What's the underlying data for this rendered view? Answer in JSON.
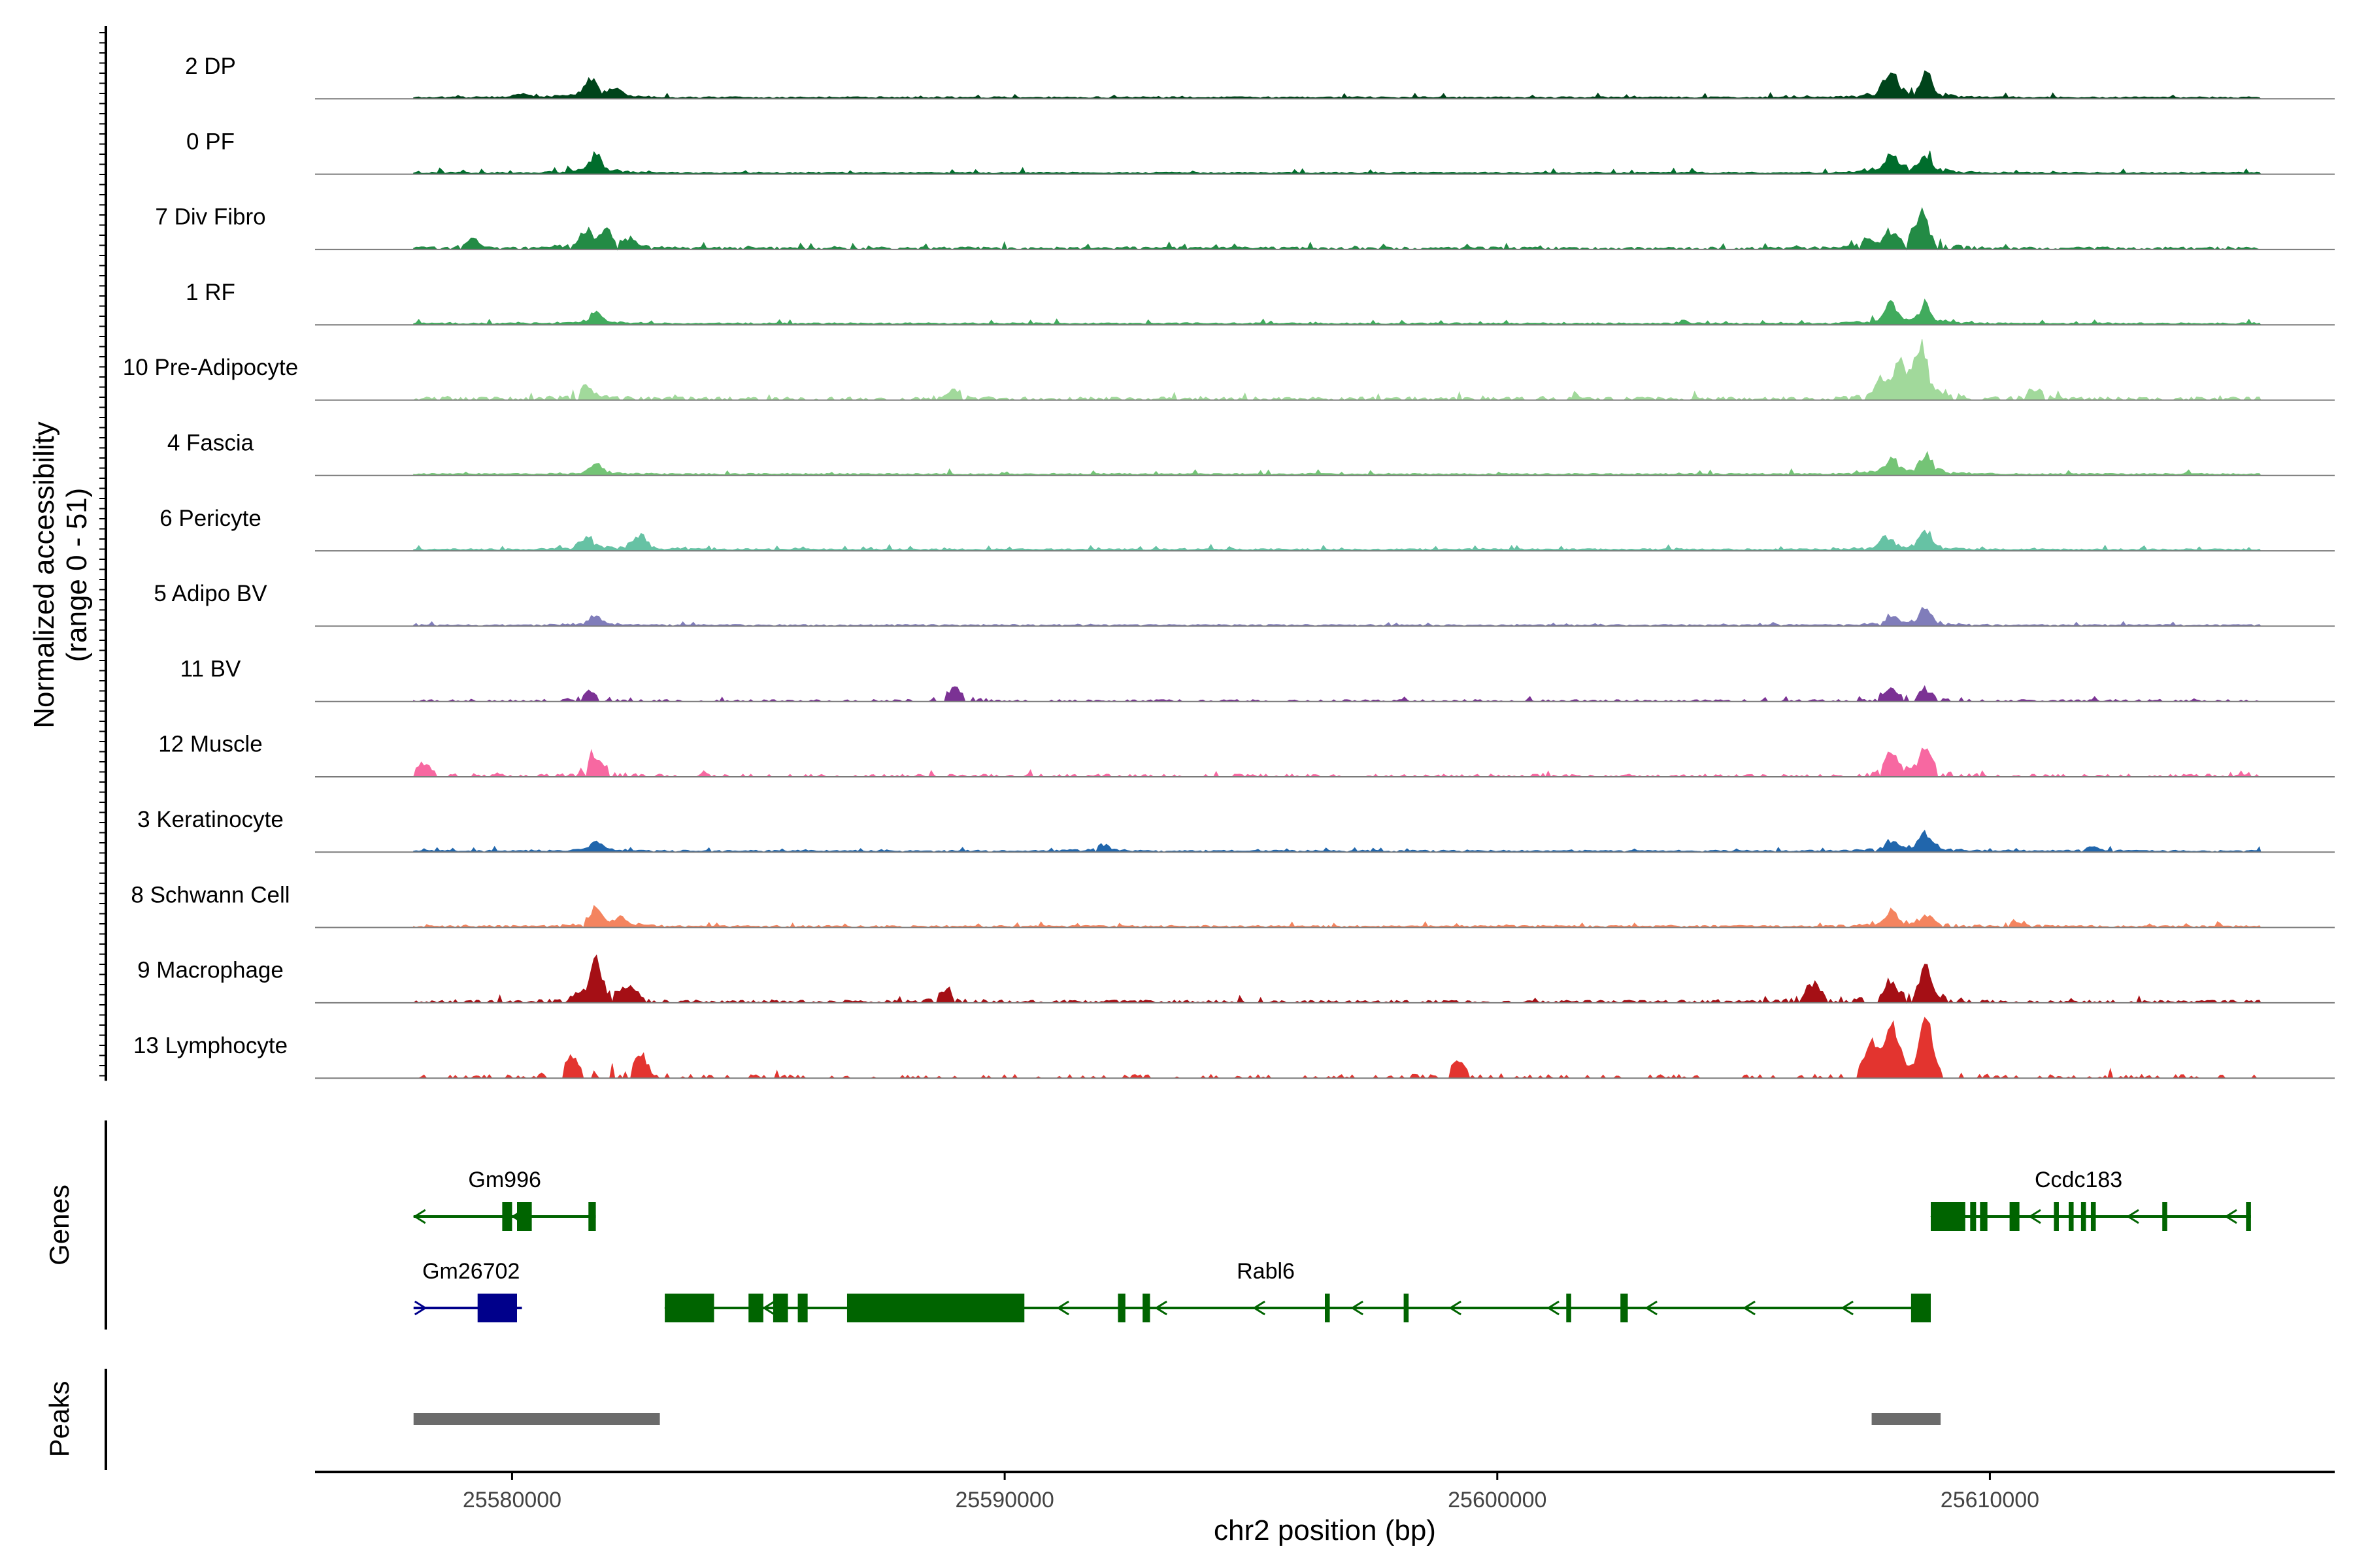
{
  "chart_data": {
    "type": "area",
    "y_axis_title_line1": "Normalized accessibility",
    "y_axis_title_line2": "(range 0 - 51)",
    "ylim": [
      0,
      51
    ],
    "x_axis_title": "chr2 position (bp)",
    "xlim": [
      25576000,
      25617000
    ],
    "x_ticks": [
      25580000,
      25590000,
      25600000,
      25610000
    ],
    "x_tick_labels": [
      "25580000",
      "25590000",
      "25600000",
      "25610000"
    ],
    "genes_label": "Genes",
    "peaks_label": "Peaks",
    "peak_regions": [
      [
        25578000,
        25583000
      ],
      [
        25607600,
        25609000
      ]
    ],
    "peak_color": "#6b6b6b",
    "tracks": [
      {
        "name": "2 DP",
        "color": "#00441b",
        "scale": 0.62,
        "sparse": 0.0,
        "seed": 11,
        "peaks": [
          [
            25581600,
            0.55
          ],
          [
            25582100,
            0.22
          ],
          [
            25608000,
            0.5
          ],
          [
            25608700,
            0.62
          ],
          [
            25580200,
            0.1
          ],
          [
            25607900,
            0.28
          ]
        ]
      },
      {
        "name": "0 PF",
        "color": "#006d2c",
        "scale": 0.6,
        "sparse": 0.0,
        "seed": 23,
        "peaks": [
          [
            25581700,
            0.5
          ],
          [
            25608000,
            0.6
          ],
          [
            25608700,
            0.55
          ]
        ]
      },
      {
        "name": "7 Div Fibro",
        "color": "#238b45",
        "scale": 0.72,
        "sparse": 0.2,
        "seed": 37,
        "peaks": [
          [
            25579200,
            0.2
          ],
          [
            25581500,
            0.4
          ],
          [
            25581900,
            0.35
          ],
          [
            25582400,
            0.22
          ],
          [
            25608000,
            0.35
          ],
          [
            25608600,
            0.95
          ],
          [
            25607500,
            0.2
          ]
        ]
      },
      {
        "name": "1 RF",
        "color": "#41ab5d",
        "scale": 0.6,
        "sparse": 0.0,
        "seed": 41,
        "peaks": [
          [
            25581700,
            0.3
          ],
          [
            25608000,
            0.55
          ],
          [
            25608700,
            0.55
          ]
        ]
      },
      {
        "name": "10 Pre-Adipocyte",
        "color": "#a1d99b",
        "scale": 0.9,
        "sparse": 0.35,
        "seed": 53,
        "peaks": [
          [
            25581500,
            0.25
          ],
          [
            25589000,
            0.18
          ],
          [
            25607800,
            0.3
          ],
          [
            25608200,
            0.55
          ],
          [
            25608600,
            1.0
          ],
          [
            25610900,
            0.2
          ]
        ]
      },
      {
        "name": "4 Fascia",
        "color": "#74c476",
        "scale": 0.62,
        "sparse": 0.0,
        "seed": 61,
        "peaks": [
          [
            25581700,
            0.3
          ],
          [
            25608000,
            0.45
          ],
          [
            25608700,
            0.6
          ]
        ]
      },
      {
        "name": "6 Pericyte",
        "color": "#66c2a4",
        "scale": 0.62,
        "sparse": 0.0,
        "seed": 67,
        "peaks": [
          [
            25581500,
            0.35
          ],
          [
            25582600,
            0.4
          ],
          [
            25607900,
            0.35
          ],
          [
            25608700,
            0.5
          ]
        ]
      },
      {
        "name": "5 Adipo BV",
        "color": "#807dba",
        "scale": 0.5,
        "sparse": 0.1,
        "seed": 71,
        "peaks": [
          [
            25581700,
            0.3
          ],
          [
            25608000,
            0.3
          ],
          [
            25608700,
            0.55
          ]
        ]
      },
      {
        "name": "11 BV",
        "color": "#7b3294",
        "scale": 0.55,
        "sparse": 0.55,
        "seed": 79,
        "peaks": [
          [
            25581600,
            0.3
          ],
          [
            25589000,
            0.45
          ],
          [
            25608000,
            0.4
          ],
          [
            25608700,
            0.35
          ]
        ]
      },
      {
        "name": "12 Muscle",
        "color": "#f768a1",
        "scale": 0.75,
        "sparse": 0.6,
        "seed": 83,
        "peaks": [
          [
            25581700,
            0.45
          ],
          [
            25608000,
            0.5
          ],
          [
            25608700,
            0.55
          ],
          [
            25578200,
            0.3
          ]
        ]
      },
      {
        "name": "3 Keratinocyte",
        "color": "#2166ac",
        "scale": 0.55,
        "sparse": 0.05,
        "seed": 89,
        "peaks": [
          [
            25581700,
            0.3
          ],
          [
            25592000,
            0.2
          ],
          [
            25608000,
            0.3
          ],
          [
            25608700,
            0.6
          ],
          [
            25612100,
            0.15
          ]
        ]
      },
      {
        "name": "8 Schwann Cell",
        "color": "#f4845f",
        "scale": 0.6,
        "sparse": 0.15,
        "seed": 97,
        "peaks": [
          [
            25581700,
            0.45
          ],
          [
            25582200,
            0.25
          ],
          [
            25608000,
            0.4
          ],
          [
            25608700,
            0.35
          ],
          [
            25610500,
            0.15
          ]
        ]
      },
      {
        "name": "9 Macrophage",
        "color": "#a50f15",
        "scale": 0.75,
        "sparse": 0.45,
        "seed": 101,
        "peaks": [
          [
            25581700,
            0.9
          ],
          [
            25582400,
            0.35
          ],
          [
            25588800,
            0.3
          ],
          [
            25606400,
            0.45
          ],
          [
            25608000,
            0.45
          ],
          [
            25608700,
            0.75
          ]
        ]
      },
      {
        "name": "13 Lymphocyte",
        "color": "#e3342f",
        "scale": 1.0,
        "sparse": 0.72,
        "seed": 103,
        "peaks": [
          [
            25581200,
            0.35
          ],
          [
            25582600,
            0.4
          ],
          [
            25599200,
            0.3
          ],
          [
            25608000,
            0.85
          ],
          [
            25608700,
            1.0
          ],
          [
            25607600,
            0.5
          ]
        ]
      }
    ],
    "genes": [
      {
        "name": "Gm996",
        "strand": "-",
        "color": "#006400",
        "start": 25578000,
        "end": 25581700,
        "row": 0,
        "exons": [
          [
            25579800,
            25580000
          ],
          [
            25580100,
            25580400
          ],
          [
            25581550,
            25581700
          ]
        ]
      },
      {
        "name": "Ccdc183",
        "strand": "-",
        "color": "#006400",
        "start": 25608800,
        "end": 25615300,
        "row": 0,
        "exons": [
          [
            25608800,
            25609500
          ],
          [
            25609600,
            25609720
          ],
          [
            25609800,
            25609950
          ],
          [
            25610400,
            25610600
          ],
          [
            25611300,
            25611400
          ],
          [
            25611600,
            25611700
          ],
          [
            25611850,
            25611950
          ],
          [
            25612050,
            25612150
          ],
          [
            25613500,
            25613600
          ],
          [
            25615200,
            25615300
          ]
        ]
      },
      {
        "name": "Gm26702",
        "strand": "+",
        "color": "#00008b",
        "start": 25578000,
        "end": 25580200,
        "row": 1,
        "exons": [
          [
            25579300,
            25580100
          ]
        ]
      },
      {
        "name": "Rabl6",
        "strand": "-",
        "color": "#006400",
        "start": 25583100,
        "end": 25608800,
        "row": 1,
        "exons": [
          [
            25583100,
            25584100
          ],
          [
            25584800,
            25585100
          ],
          [
            25585300,
            25585600
          ],
          [
            25585800,
            25586000
          ],
          [
            25586800,
            25590400
          ],
          [
            25592300,
            25592450
          ],
          [
            25592800,
            25592950
          ],
          [
            25596500,
            25596600
          ],
          [
            25598100,
            25598200
          ],
          [
            25601400,
            25601500
          ],
          [
            25602500,
            25602650
          ],
          [
            25608400,
            25608800
          ]
        ]
      }
    ]
  }
}
